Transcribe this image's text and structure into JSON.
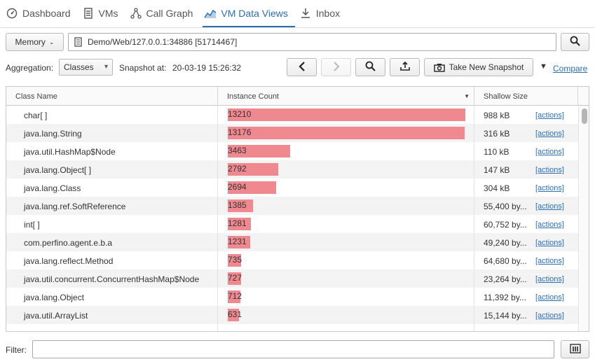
{
  "tabs": [
    {
      "label": "Dashboard",
      "icon": "dashboard-icon"
    },
    {
      "label": "VMs",
      "icon": "vms-icon"
    },
    {
      "label": "Call Graph",
      "icon": "call-graph-icon"
    },
    {
      "label": "VM Data Views",
      "icon": "vm-data-views-icon",
      "active": true
    },
    {
      "label": "Inbox",
      "icon": "inbox-icon"
    }
  ],
  "toolbar": {
    "view_selector": "Memory",
    "path": "Demo/Web/127.0.0.1:34886 [51714467]",
    "aggregation_label": "Aggregation:",
    "aggregation_value": "Classes",
    "snapshot_label": "Snapshot at:",
    "snapshot_time": "20-03-19 15:26:32",
    "take_snapshot": "Take New Snapshot",
    "compare": "Compare"
  },
  "table": {
    "columns": [
      "Class Name",
      "Instance Count",
      "Shallow Size"
    ],
    "max_count": 13210,
    "rows": [
      {
        "name": "char[ ]",
        "count": 13210,
        "size": "988 kB",
        "action": "[actions]"
      },
      {
        "name": "java.lang.String",
        "count": 13176,
        "size": "316 kB",
        "action": "[actions]"
      },
      {
        "name": "java.util.HashMap$Node",
        "count": 3463,
        "size": "110 kB",
        "action": "[actions]"
      },
      {
        "name": "java.lang.Object[ ]",
        "count": 2792,
        "size": "147 kB",
        "action": "[actions]"
      },
      {
        "name": "java.lang.Class",
        "count": 2694,
        "size": "304 kB",
        "action": "[actions]"
      },
      {
        "name": "java.lang.ref.SoftReference",
        "count": 1385,
        "size": "55,400 by...",
        "action": "[actions]"
      },
      {
        "name": "int[ ]",
        "count": 1281,
        "size": "60,752 by...",
        "action": "[actions]"
      },
      {
        "name": "com.perfino.agent.e.b.a",
        "count": 1231,
        "size": "49,240 by...",
        "action": "[actions]"
      },
      {
        "name": "java.lang.reflect.Method",
        "count": 735,
        "size": "64,680 by...",
        "action": "[actions]"
      },
      {
        "name": "java.util.concurrent.ConcurrentHashMap$Node",
        "count": 727,
        "size": "23,264 by...",
        "action": "[actions]"
      },
      {
        "name": "java.lang.Object",
        "count": 712,
        "size": "11,392 by...",
        "action": "[actions]"
      },
      {
        "name": "java.util.ArrayList",
        "count": 631,
        "size": "15,144 by...",
        "action": "[actions]"
      }
    ]
  },
  "footer": {
    "filter_label": "Filter:",
    "filter_value": ""
  }
}
